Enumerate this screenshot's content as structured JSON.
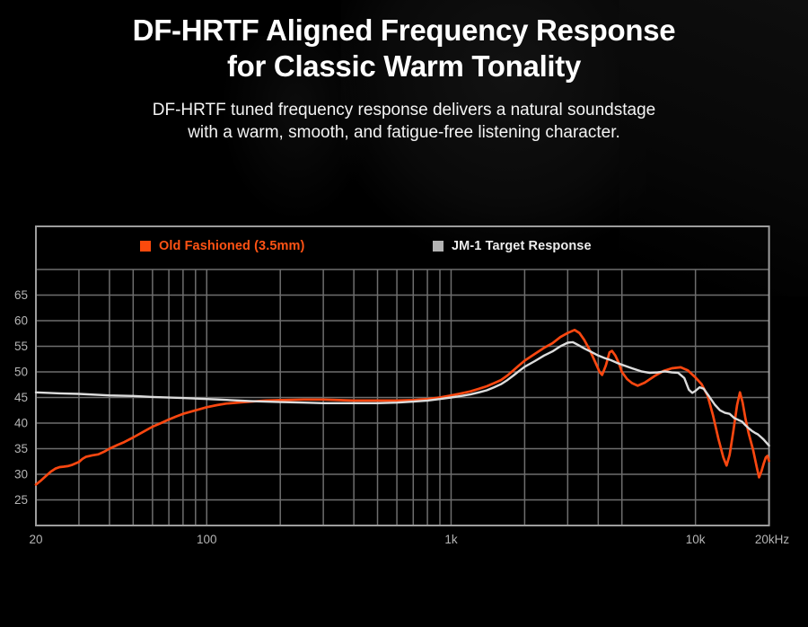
{
  "header": {
    "title_line1": "DF-HRTF Aligned Frequency Response",
    "title_line2": "for Classic Warm Tonality",
    "subtitle_line1": "DF-HRTF tuned frequency response delivers a natural soundstage",
    "subtitle_line2": "with a warm, smooth, and fatigue-free listening character."
  },
  "legend": {
    "items": [
      {
        "label": "Old Fashioned (3.5mm)",
        "swatch_color": "#fb4a0d"
      },
      {
        "label": "JM-1 Target Response",
        "swatch_color": "#b3b3b3"
      }
    ]
  },
  "chart_data": {
    "type": "line",
    "title": "",
    "xlabel": "",
    "ylabel": "",
    "x_scale": "log",
    "x_unit": "Hz",
    "xlim": [
      20,
      20000
    ],
    "ylim": [
      20,
      70
    ],
    "grid": true,
    "legend_position": "top-inside",
    "y_tick_labels": [
      65,
      60,
      55,
      50,
      45,
      40,
      35,
      30,
      25
    ],
    "y_gridlines": [
      25,
      30,
      35,
      40,
      45,
      50,
      55,
      60,
      65,
      70
    ],
    "x_gridlines": [
      30,
      40,
      50,
      60,
      70,
      80,
      90,
      100,
      200,
      300,
      400,
      500,
      600,
      700,
      800,
      900,
      1000,
      2000,
      3000,
      4000,
      5000,
      10000
    ],
    "x_tick_labels": [
      {
        "f": 20,
        "label": "20"
      },
      {
        "f": 100,
        "label": "100"
      },
      {
        "f": 1000,
        "label": "1k"
      },
      {
        "f": 10000,
        "label": "10k"
      },
      {
        "f": 20000,
        "label": "20kHz"
      }
    ],
    "colors": {
      "grid": "#6e6e6e",
      "border": "#9d9d9d",
      "tick_labels": "#b5b5b5"
    },
    "series": [
      {
        "name": "Old Fashioned (3.5mm)",
        "color": "#fa4710",
        "points": [
          [
            20,
            28.0
          ],
          [
            21,
            28.8
          ],
          [
            22,
            29.7
          ],
          [
            23,
            30.5
          ],
          [
            24,
            31.1
          ],
          [
            25,
            31.4
          ],
          [
            26,
            31.5
          ],
          [
            27,
            31.6
          ],
          [
            28,
            31.8
          ],
          [
            30,
            32.4
          ],
          [
            31,
            33.0
          ],
          [
            32,
            33.4
          ],
          [
            34,
            33.7
          ],
          [
            36,
            33.9
          ],
          [
            38,
            34.4
          ],
          [
            40,
            35.0
          ],
          [
            43,
            35.7
          ],
          [
            46,
            36.3
          ],
          [
            50,
            37.2
          ],
          [
            55,
            38.3
          ],
          [
            60,
            39.3
          ],
          [
            65,
            40.0
          ],
          [
            70,
            40.7
          ],
          [
            75,
            41.3
          ],
          [
            80,
            41.8
          ],
          [
            90,
            42.5
          ],
          [
            100,
            43.1
          ],
          [
            110,
            43.5
          ],
          [
            120,
            43.8
          ],
          [
            135,
            44.0
          ],
          [
            150,
            44.2
          ],
          [
            175,
            44.4
          ],
          [
            200,
            44.5
          ],
          [
            250,
            44.6
          ],
          [
            300,
            44.6
          ],
          [
            350,
            44.5
          ],
          [
            400,
            44.4
          ],
          [
            500,
            44.4
          ],
          [
            600,
            44.4
          ],
          [
            700,
            44.5
          ],
          [
            800,
            44.7
          ],
          [
            900,
            45.0
          ],
          [
            1000,
            45.4
          ],
          [
            1100,
            45.8
          ],
          [
            1200,
            46.2
          ],
          [
            1300,
            46.7
          ],
          [
            1400,
            47.2
          ],
          [
            1500,
            47.8
          ],
          [
            1600,
            48.4
          ],
          [
            1700,
            49.3
          ],
          [
            1800,
            50.3
          ],
          [
            1900,
            51.3
          ],
          [
            2000,
            52.2
          ],
          [
            2200,
            53.5
          ],
          [
            2400,
            54.7
          ],
          [
            2600,
            55.6
          ],
          [
            2800,
            56.8
          ],
          [
            3000,
            57.6
          ],
          [
            3200,
            58.2
          ],
          [
            3350,
            57.6
          ],
          [
            3500,
            56.3
          ],
          [
            3700,
            54.2
          ],
          [
            3900,
            51.8
          ],
          [
            4050,
            50.0
          ],
          [
            4150,
            49.4
          ],
          [
            4300,
            51.3
          ],
          [
            4450,
            53.8
          ],
          [
            4550,
            54.1
          ],
          [
            4700,
            53.2
          ],
          [
            4850,
            51.8
          ],
          [
            5000,
            50.0
          ],
          [
            5250,
            48.6
          ],
          [
            5500,
            47.8
          ],
          [
            5800,
            47.3
          ],
          [
            6200,
            47.9
          ],
          [
            6800,
            49.2
          ],
          [
            7400,
            50.2
          ],
          [
            8000,
            50.7
          ],
          [
            8700,
            50.9
          ],
          [
            9300,
            50.3
          ],
          [
            10000,
            48.9
          ],
          [
            10600,
            47.6
          ],
          [
            11200,
            45.4
          ],
          [
            11800,
            41.5
          ],
          [
            12400,
            37.0
          ],
          [
            13000,
            33.3
          ],
          [
            13400,
            31.7
          ],
          [
            13800,
            33.8
          ],
          [
            14300,
            38.5
          ],
          [
            14800,
            43.5
          ],
          [
            15200,
            46.0
          ],
          [
            15600,
            44.0
          ],
          [
            16000,
            41.0
          ],
          [
            16500,
            38.0
          ],
          [
            17200,
            34.8
          ],
          [
            17800,
            31.5
          ],
          [
            18200,
            29.4
          ],
          [
            18600,
            30.5
          ],
          [
            19000,
            32.0
          ],
          [
            19400,
            33.3
          ],
          [
            19700,
            33.6
          ],
          [
            20000,
            32.6
          ]
        ]
      },
      {
        "name": "JM-1 Target Response",
        "color": "#dcdcdc",
        "points": [
          [
            20,
            46.0
          ],
          [
            25,
            45.8
          ],
          [
            30,
            45.7
          ],
          [
            40,
            45.4
          ],
          [
            50,
            45.3
          ],
          [
            60,
            45.1
          ],
          [
            80,
            44.9
          ],
          [
            100,
            44.7
          ],
          [
            125,
            44.5
          ],
          [
            150,
            44.3
          ],
          [
            200,
            44.1
          ],
          [
            250,
            44.0
          ],
          [
            300,
            43.9
          ],
          [
            400,
            43.9
          ],
          [
            500,
            43.9
          ],
          [
            600,
            44.0
          ],
          [
            700,
            44.2
          ],
          [
            800,
            44.4
          ],
          [
            900,
            44.7
          ],
          [
            1000,
            45.0
          ],
          [
            1100,
            45.3
          ],
          [
            1200,
            45.6
          ],
          [
            1300,
            46.0
          ],
          [
            1400,
            46.4
          ],
          [
            1500,
            47.0
          ],
          [
            1600,
            47.6
          ],
          [
            1700,
            48.4
          ],
          [
            1800,
            49.3
          ],
          [
            1900,
            50.2
          ],
          [
            2000,
            51.0
          ],
          [
            2200,
            52.1
          ],
          [
            2400,
            53.2
          ],
          [
            2600,
            54.0
          ],
          [
            2800,
            55.0
          ],
          [
            3000,
            55.7
          ],
          [
            3150,
            55.8
          ],
          [
            3300,
            55.3
          ],
          [
            3500,
            54.6
          ],
          [
            3750,
            53.9
          ],
          [
            4000,
            53.2
          ],
          [
            4250,
            52.7
          ],
          [
            4500,
            52.3
          ],
          [
            4750,
            51.8
          ],
          [
            5000,
            51.4
          ],
          [
            5500,
            50.7
          ],
          [
            6000,
            50.1
          ],
          [
            6500,
            49.8
          ],
          [
            7000,
            49.9
          ],
          [
            7500,
            50.1
          ],
          [
            8000,
            49.9
          ],
          [
            8500,
            49.8
          ],
          [
            9000,
            48.8
          ],
          [
            9400,
            46.5
          ],
          [
            9700,
            45.9
          ],
          [
            10000,
            46.3
          ],
          [
            10400,
            47.0
          ],
          [
            10800,
            46.7
          ],
          [
            11300,
            45.4
          ],
          [
            12000,
            43.6
          ],
          [
            12600,
            42.5
          ],
          [
            13200,
            42.0
          ],
          [
            13800,
            41.8
          ],
          [
            14400,
            41.0
          ],
          [
            15000,
            40.6
          ],
          [
            15500,
            40.3
          ],
          [
            16000,
            39.6
          ],
          [
            16500,
            39.0
          ],
          [
            17000,
            38.5
          ],
          [
            17500,
            38.1
          ],
          [
            18000,
            37.8
          ],
          [
            18500,
            37.3
          ],
          [
            19000,
            36.8
          ],
          [
            19500,
            36.2
          ],
          [
            20000,
            35.6
          ]
        ]
      }
    ]
  }
}
